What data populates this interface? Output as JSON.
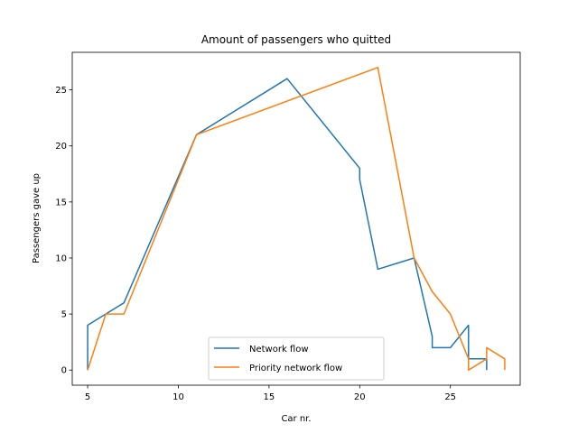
{
  "chart_data": {
    "type": "line",
    "title": "Amount of passengers who quitted",
    "xlabel": "Car nr.",
    "ylabel": "Passengers gave up",
    "xlim": [
      4.15,
      28.85
    ],
    "ylim": [
      -1.35,
      28.35
    ],
    "xticks": [
      5,
      10,
      15,
      20,
      25
    ],
    "yticks": [
      0,
      5,
      10,
      15,
      20,
      25
    ],
    "grid": false,
    "legend_position": "lower center",
    "series": [
      {
        "name": "Network flow",
        "color": "#1f77b4",
        "x": [
          5,
          5,
          7,
          11,
          16,
          20,
          20,
          21,
          23,
          24,
          24,
          25,
          26,
          26,
          27,
          27
        ],
        "y": [
          0,
          4,
          6,
          21,
          26,
          18,
          17,
          9,
          10,
          3,
          2,
          2,
          4,
          1,
          1,
          0
        ]
      },
      {
        "name": "Priority network flow",
        "color": "#ff7f0e",
        "x": [
          5,
          6,
          7,
          11,
          21,
          23,
          24,
          25,
          26,
          26,
          27,
          27,
          28,
          28
        ],
        "y": [
          0,
          5,
          5,
          21,
          27,
          10,
          7,
          5,
          1,
          0,
          1,
          2,
          1,
          0
        ]
      }
    ]
  }
}
